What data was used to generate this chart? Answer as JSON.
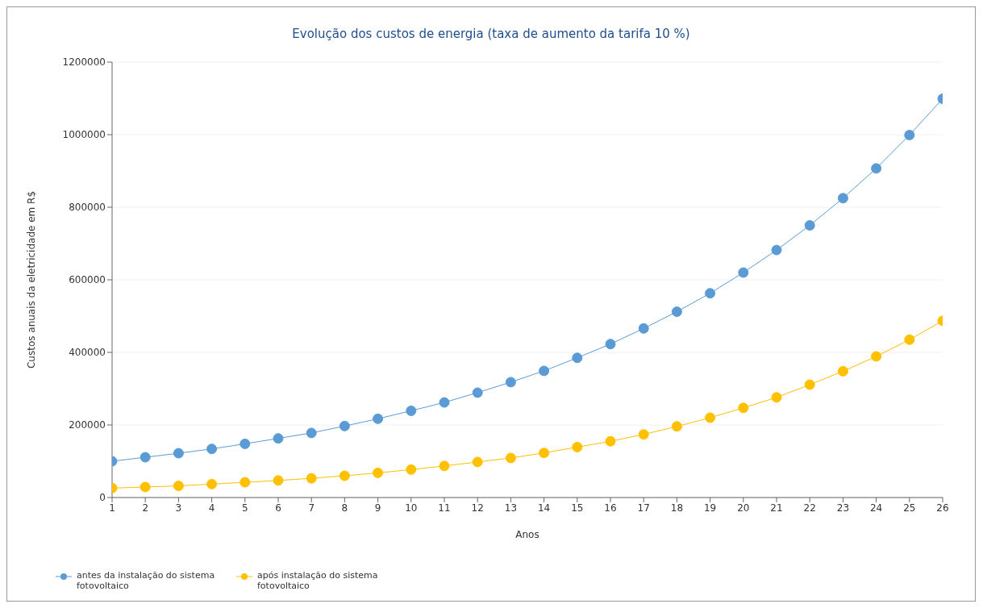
{
  "chart_data": {
    "type": "line",
    "title": "Evolução dos custos de energia (taxa de aumento da tarifa 10 %)",
    "xlabel": "Anos",
    "ylabel": "Custos anuais da eletricidade em R$",
    "x": [
      1,
      2,
      3,
      4,
      5,
      6,
      7,
      8,
      9,
      10,
      11,
      12,
      13,
      14,
      15,
      16,
      17,
      18,
      19,
      20,
      21,
      22,
      23,
      24,
      25,
      26
    ],
    "series": [
      {
        "name": "antes da instalação do sistema fotovoltaico",
        "color": "#5b9bd5",
        "values": [
          100000,
          111000,
          122000,
          134000,
          148000,
          163000,
          178000,
          197000,
          217000,
          239000,
          262000,
          289000,
          318000,
          349000,
          385000,
          423000,
          466000,
          512000,
          563000,
          620000,
          682000,
          750000,
          825000,
          907000,
          999000,
          1099000
        ]
      },
      {
        "name": "após instalação do sistema fotovoltaico",
        "color": "#ffc000",
        "values": [
          26000,
          29000,
          32000,
          37000,
          42000,
          47000,
          53000,
          60000,
          68000,
          77000,
          87000,
          98000,
          109000,
          123000,
          139000,
          155000,
          174000,
          196000,
          220000,
          247000,
          276000,
          311000,
          348000,
          389000,
          435000,
          487000
        ]
      }
    ],
    "xlim": [
      1,
      26
    ],
    "xticks": [
      1,
      2,
      3,
      4,
      5,
      6,
      7,
      8,
      9,
      10,
      11,
      12,
      13,
      14,
      15,
      16,
      17,
      18,
      19,
      20,
      21,
      22,
      23,
      24,
      25,
      26
    ],
    "ylim": [
      0,
      1200000
    ],
    "yticks": [
      0,
      200000,
      400000,
      600000,
      800000,
      1000000,
      1200000
    ],
    "grid": "y",
    "legend": "bottom left",
    "marker": "circle",
    "line_style": "solid"
  }
}
